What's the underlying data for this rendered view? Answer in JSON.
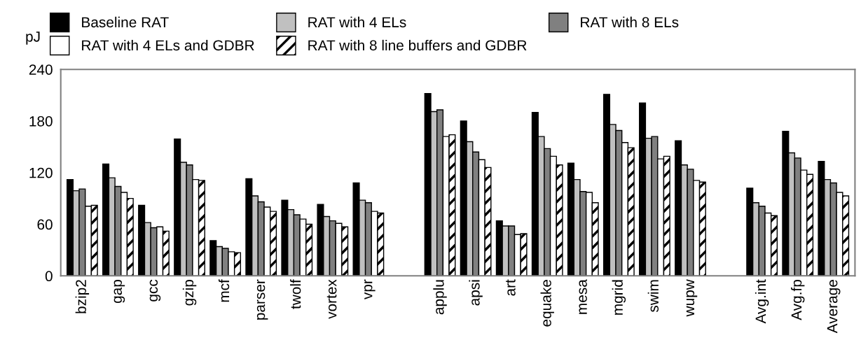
{
  "chart_data": {
    "type": "bar",
    "ylabel": "pJ",
    "categories": [
      "bzip2",
      "gap",
      "gcc",
      "gzip",
      "mcf",
      "parser",
      "twolf",
      "vortex",
      "vpr",
      null,
      "applu",
      "apsi",
      "art",
      "equake",
      "mesa",
      "mgrid",
      "swim",
      "wupw",
      null,
      "Avg.int",
      "Avg.fp",
      "Average"
    ],
    "series": [
      {
        "name": "Baseline RAT",
        "color": "#000000",
        "values": [
          112,
          130,
          82,
          159,
          41,
          113,
          88,
          83,
          108,
          null,
          212,
          180,
          64,
          190,
          131,
          211,
          201,
          157,
          null,
          102,
          168,
          133
        ]
      },
      {
        "name": "RAT with 4 ELs",
        "color": "#c0c0c0",
        "values": [
          99,
          114,
          62,
          132,
          34,
          93,
          77,
          69,
          88,
          null,
          191,
          156,
          58,
          162,
          112,
          176,
          160,
          129,
          null,
          85,
          143,
          112
        ]
      },
      {
        "name": "RAT with 8 ELs",
        "color": "#808080",
        "values": [
          101,
          104,
          56,
          129,
          32,
          86,
          71,
          64,
          85,
          null,
          193,
          144,
          58,
          148,
          98,
          169,
          162,
          124,
          null,
          81,
          137,
          108
        ]
      },
      {
        "name": "RAT with 4 ELs and GDBR",
        "color": "#ffffff",
        "values": [
          81,
          97,
          57,
          112,
          28,
          80,
          66,
          61,
          75,
          null,
          162,
          135,
          48,
          139,
          97,
          155,
          136,
          111,
          null,
          73,
          123,
          97
        ]
      },
      {
        "name": "RAT with 8 line buffers and GDBR",
        "color": "#000000",
        "values": [
          82,
          90,
          52,
          111,
          27,
          75,
          60,
          57,
          73,
          null,
          164,
          126,
          49,
          129,
          85,
          149,
          139,
          109,
          null,
          70,
          118,
          93
        ]
      }
    ],
    "ylim": [
      0,
      240
    ],
    "yticks": [
      0,
      60,
      120,
      180,
      240
    ],
    "grid": false,
    "legend": "top"
  }
}
